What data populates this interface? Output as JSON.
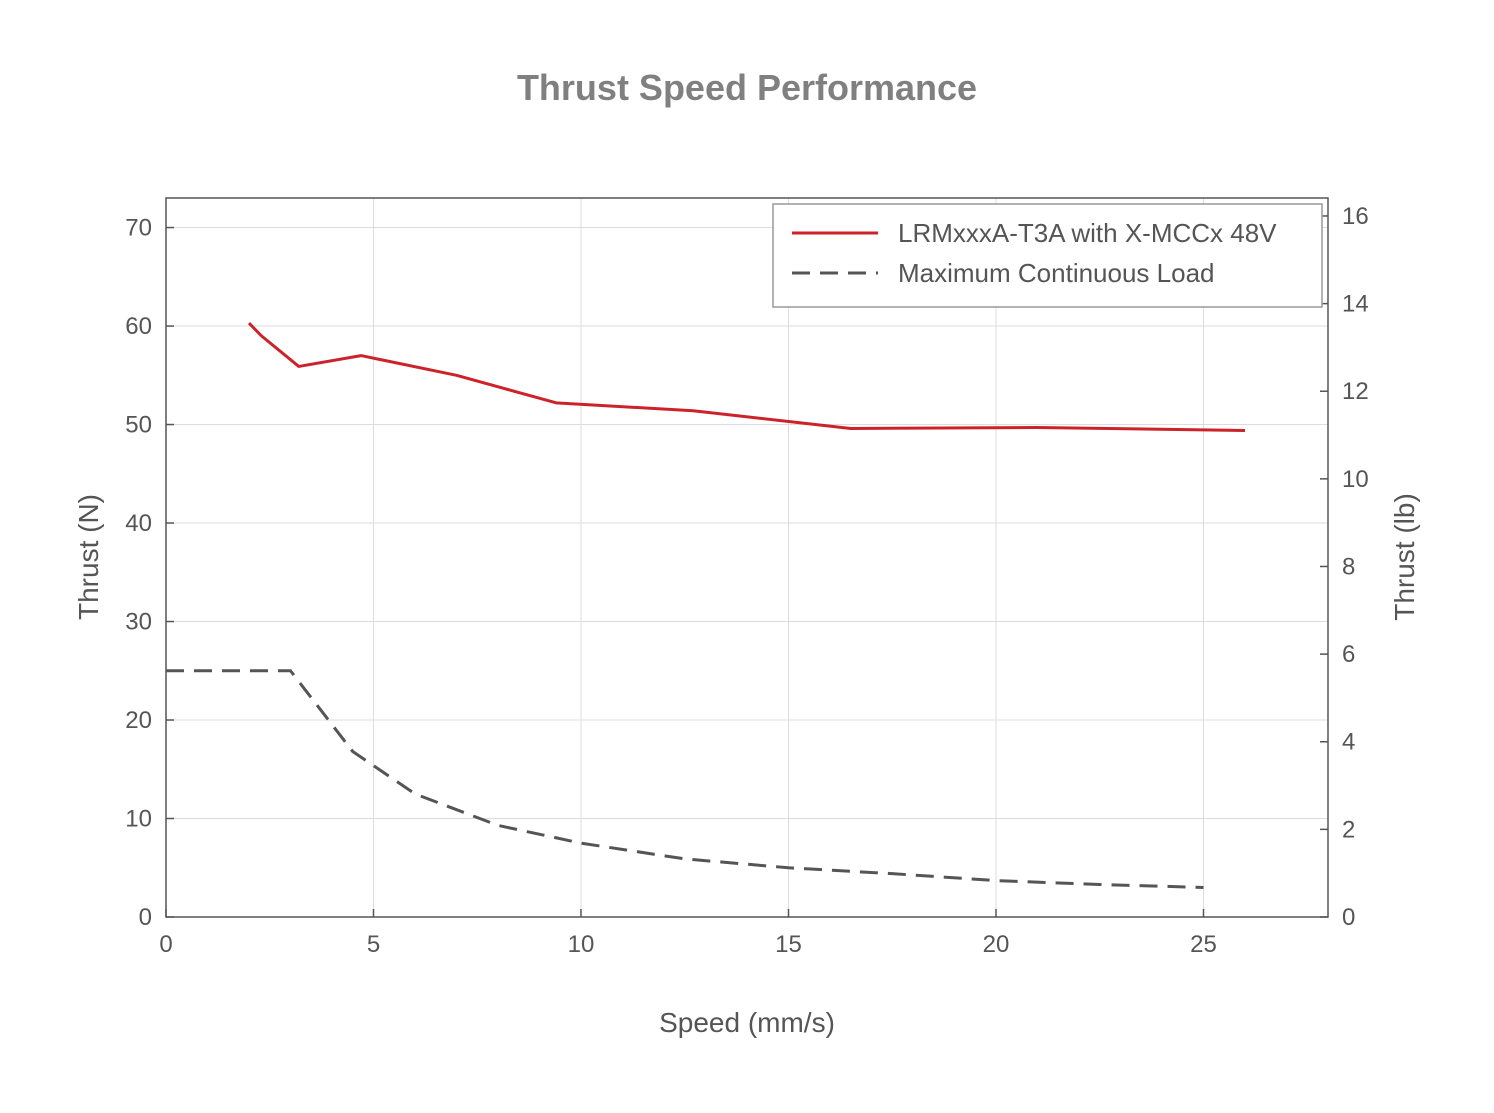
{
  "chart_data": {
    "type": "line",
    "title": "Thrust Speed Performance",
    "xlabel": "Speed (mm/s)",
    "ylabel": "Thrust (N)",
    "y2label": "Thrust (lb)",
    "xlim": [
      0,
      28
    ],
    "ylim": [
      0,
      73
    ],
    "y2lim": [
      0,
      16.41
    ],
    "xticks": [
      0,
      5,
      10,
      15,
      20,
      25
    ],
    "yticks": [
      0,
      10,
      20,
      30,
      40,
      50,
      60,
      70
    ],
    "y2ticks": [
      0,
      2,
      4,
      6,
      8,
      10,
      12,
      14,
      16
    ],
    "grid": true,
    "legend_position": "top-right",
    "series": [
      {
        "name": "LRMxxxA-T3A with X-MCCx 48V",
        "color": "#cc2229",
        "style": "solid",
        "x": [
          2.0,
          2.3,
          3.2,
          4.7,
          7.0,
          9.4,
          12.7,
          16.5,
          21.0,
          26.0
        ],
        "y": [
          60.3,
          59.0,
          55.9,
          57.0,
          55.0,
          52.2,
          51.4,
          49.6,
          49.7,
          49.4
        ]
      },
      {
        "name": "Maximum Continuous Load",
        "color": "#555555",
        "style": "dashed",
        "x": [
          0,
          3.0,
          4.5,
          6.0,
          8.0,
          10.0,
          12.5,
          15.0,
          17.5,
          20.0,
          22.5,
          25.0
        ],
        "y": [
          25.0,
          25.0,
          16.8,
          12.5,
          9.3,
          7.5,
          5.9,
          5.0,
          4.4,
          3.7,
          3.3,
          3.0
        ]
      }
    ]
  }
}
